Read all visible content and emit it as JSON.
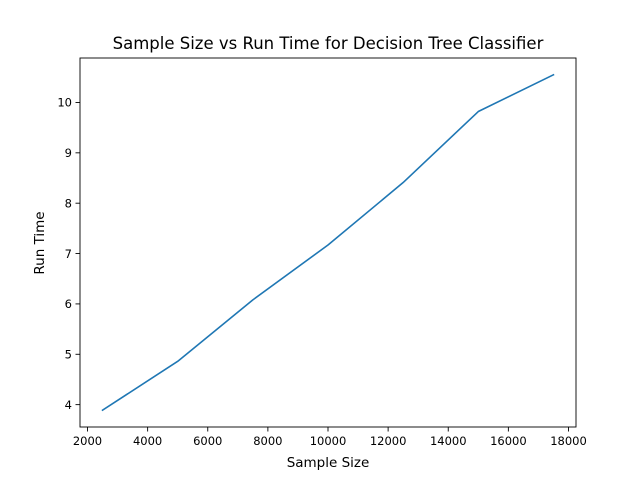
{
  "chart_data": {
    "type": "line",
    "title": "Sample Size vs Run Time for Decision Tree Classifier",
    "xlabel": "Sample Size",
    "ylabel": "Run Time",
    "x": [
      2500,
      5000,
      7500,
      10000,
      12500,
      15000,
      17500
    ],
    "series": [
      {
        "values": [
          3.89,
          4.86,
          6.08,
          7.17,
          8.41,
          9.82,
          10.55
        ],
        "color": "#1f77b4"
      }
    ],
    "xlim": [
      1750,
      18250
    ],
    "ylim": [
      3.556,
      10.883
    ],
    "xticks": [
      2000,
      4000,
      6000,
      8000,
      10000,
      12000,
      14000,
      16000,
      18000
    ],
    "yticks": [
      4,
      5,
      6,
      7,
      8,
      9,
      10
    ],
    "grid": false,
    "legend": "none"
  }
}
